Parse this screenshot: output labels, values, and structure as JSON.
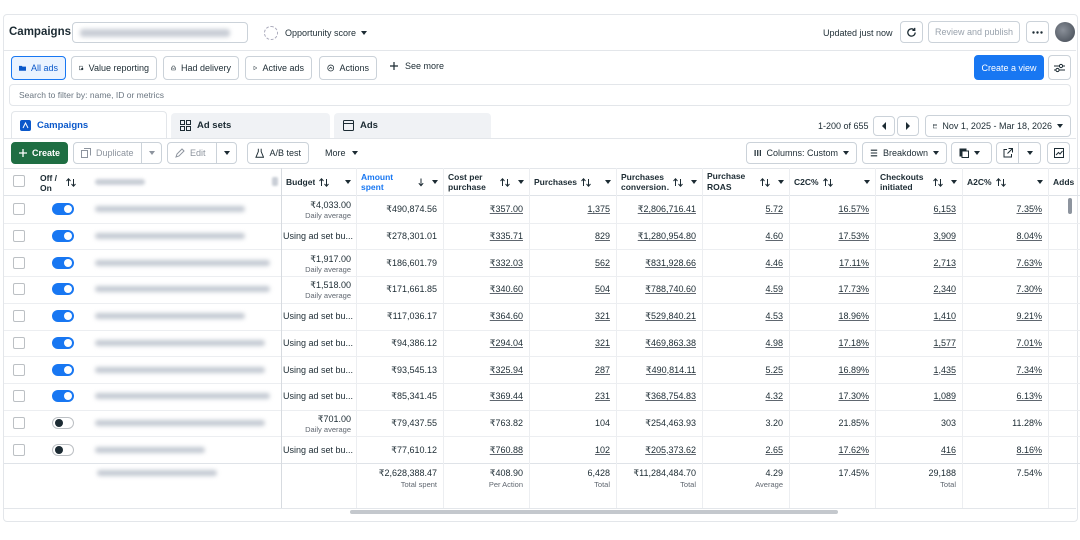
{
  "topbar": {
    "title": "Campaigns",
    "opportunity": "Opportunity score",
    "updated": "Updated just now",
    "review": "Review and publish"
  },
  "filters": {
    "items": [
      "All ads",
      "Value reporting",
      "Had delivery",
      "Active ads",
      "Actions"
    ],
    "see_more": "See more",
    "create_view": "Create a view"
  },
  "search_placeholder": "Search to filter by: name, ID or metrics",
  "tabs": [
    "Campaigns",
    "Ad sets",
    "Ads"
  ],
  "pagination": "1-200 of 655",
  "date_range": "Nov 1, 2025 - Mar 18, 2026",
  "toolbar": {
    "create": "Create",
    "duplicate": "Duplicate",
    "edit": "Edit",
    "ab_test": "A/B test",
    "more": "More",
    "columns": "Columns: Custom",
    "breakdown": "Breakdown"
  },
  "table": {
    "off_on": "Off / On",
    "columns": [
      "Budget",
      "Amount spent",
      "Cost per purchase",
      "Purchases",
      "Purchases conversion…",
      "Purchase ROAS (retu…",
      "C2C%",
      "Checkouts initiated",
      "A2C%",
      "Adds"
    ],
    "rows": [
      {
        "on": true,
        "linked": true,
        "budget": [
          "₹4,033.00",
          "Daily average"
        ],
        "values": [
          "₹490,874.56",
          "₹357.00",
          "1,375",
          "₹2,806,716.41",
          "5.72",
          "16.57%",
          "6,153",
          "7.35%"
        ]
      },
      {
        "on": true,
        "linked": true,
        "budget": [
          "Using ad set bu..."
        ],
        "values": [
          "₹278,301.01",
          "₹335.71",
          "829",
          "₹1,280,954.80",
          "4.60",
          "17.53%",
          "3,909",
          "8.04%"
        ]
      },
      {
        "on": true,
        "linked": true,
        "budget": [
          "₹1,917.00",
          "Daily average"
        ],
        "values": [
          "₹186,601.79",
          "₹332.03",
          "562",
          "₹831,928.66",
          "4.46",
          "17.11%",
          "2,713",
          "7.63%"
        ]
      },
      {
        "on": true,
        "linked": true,
        "budget": [
          "₹1,518.00",
          "Daily average"
        ],
        "values": [
          "₹171,661.85",
          "₹340.60",
          "504",
          "₹788,740.60",
          "4.59",
          "17.73%",
          "2,340",
          "7.30%"
        ]
      },
      {
        "on": true,
        "linked": true,
        "budget": [
          "Using ad set bu..."
        ],
        "values": [
          "₹117,036.17",
          "₹364.60",
          "321",
          "₹529,840.21",
          "4.53",
          "18.96%",
          "1,410",
          "9.21%"
        ]
      },
      {
        "on": true,
        "linked": true,
        "budget": [
          "Using ad set bu..."
        ],
        "values": [
          "₹94,386.12",
          "₹294.04",
          "321",
          "₹469,863.38",
          "4.98",
          "17.18%",
          "1,577",
          "7.01%"
        ]
      },
      {
        "on": true,
        "linked": true,
        "budget": [
          "Using ad set bu..."
        ],
        "values": [
          "₹93,545.13",
          "₹325.94",
          "287",
          "₹490,814.11",
          "5.25",
          "16.89%",
          "1,435",
          "7.34%"
        ]
      },
      {
        "on": true,
        "linked": true,
        "budget": [
          "Using ad set bu..."
        ],
        "values": [
          "₹85,341.45",
          "₹369.44",
          "231",
          "₹368,754.83",
          "4.32",
          "17.30%",
          "1,089",
          "6.13%"
        ]
      },
      {
        "on": false,
        "linked": false,
        "budget": [
          "₹701.00",
          "Daily average"
        ],
        "values": [
          "₹79,437.55",
          "₹763.82",
          "104",
          "₹254,463.93",
          "3.20",
          "21.85%",
          "303",
          "11.28%"
        ]
      },
      {
        "on": false,
        "linked": true,
        "budget": [
          "Using ad set bu..."
        ],
        "values": [
          "₹77,610.12",
          "₹760.88",
          "102",
          "₹205,373.62",
          "2.65",
          "17.62%",
          "416",
          "8.16%"
        ]
      }
    ],
    "totals": [
      {
        "value": "₹2,628,388.47",
        "note": "Total spent"
      },
      {
        "value": "₹408.90",
        "note": "Per Action"
      },
      {
        "value": "6,428",
        "note": "Total"
      },
      {
        "value": "₹11,284,484.70",
        "note": "Total"
      },
      {
        "value": "4.29",
        "note": "Average"
      },
      {
        "value": "17.45%"
      },
      {
        "value": "29,188",
        "note": "Total"
      },
      {
        "value": "7.54%"
      }
    ]
  }
}
